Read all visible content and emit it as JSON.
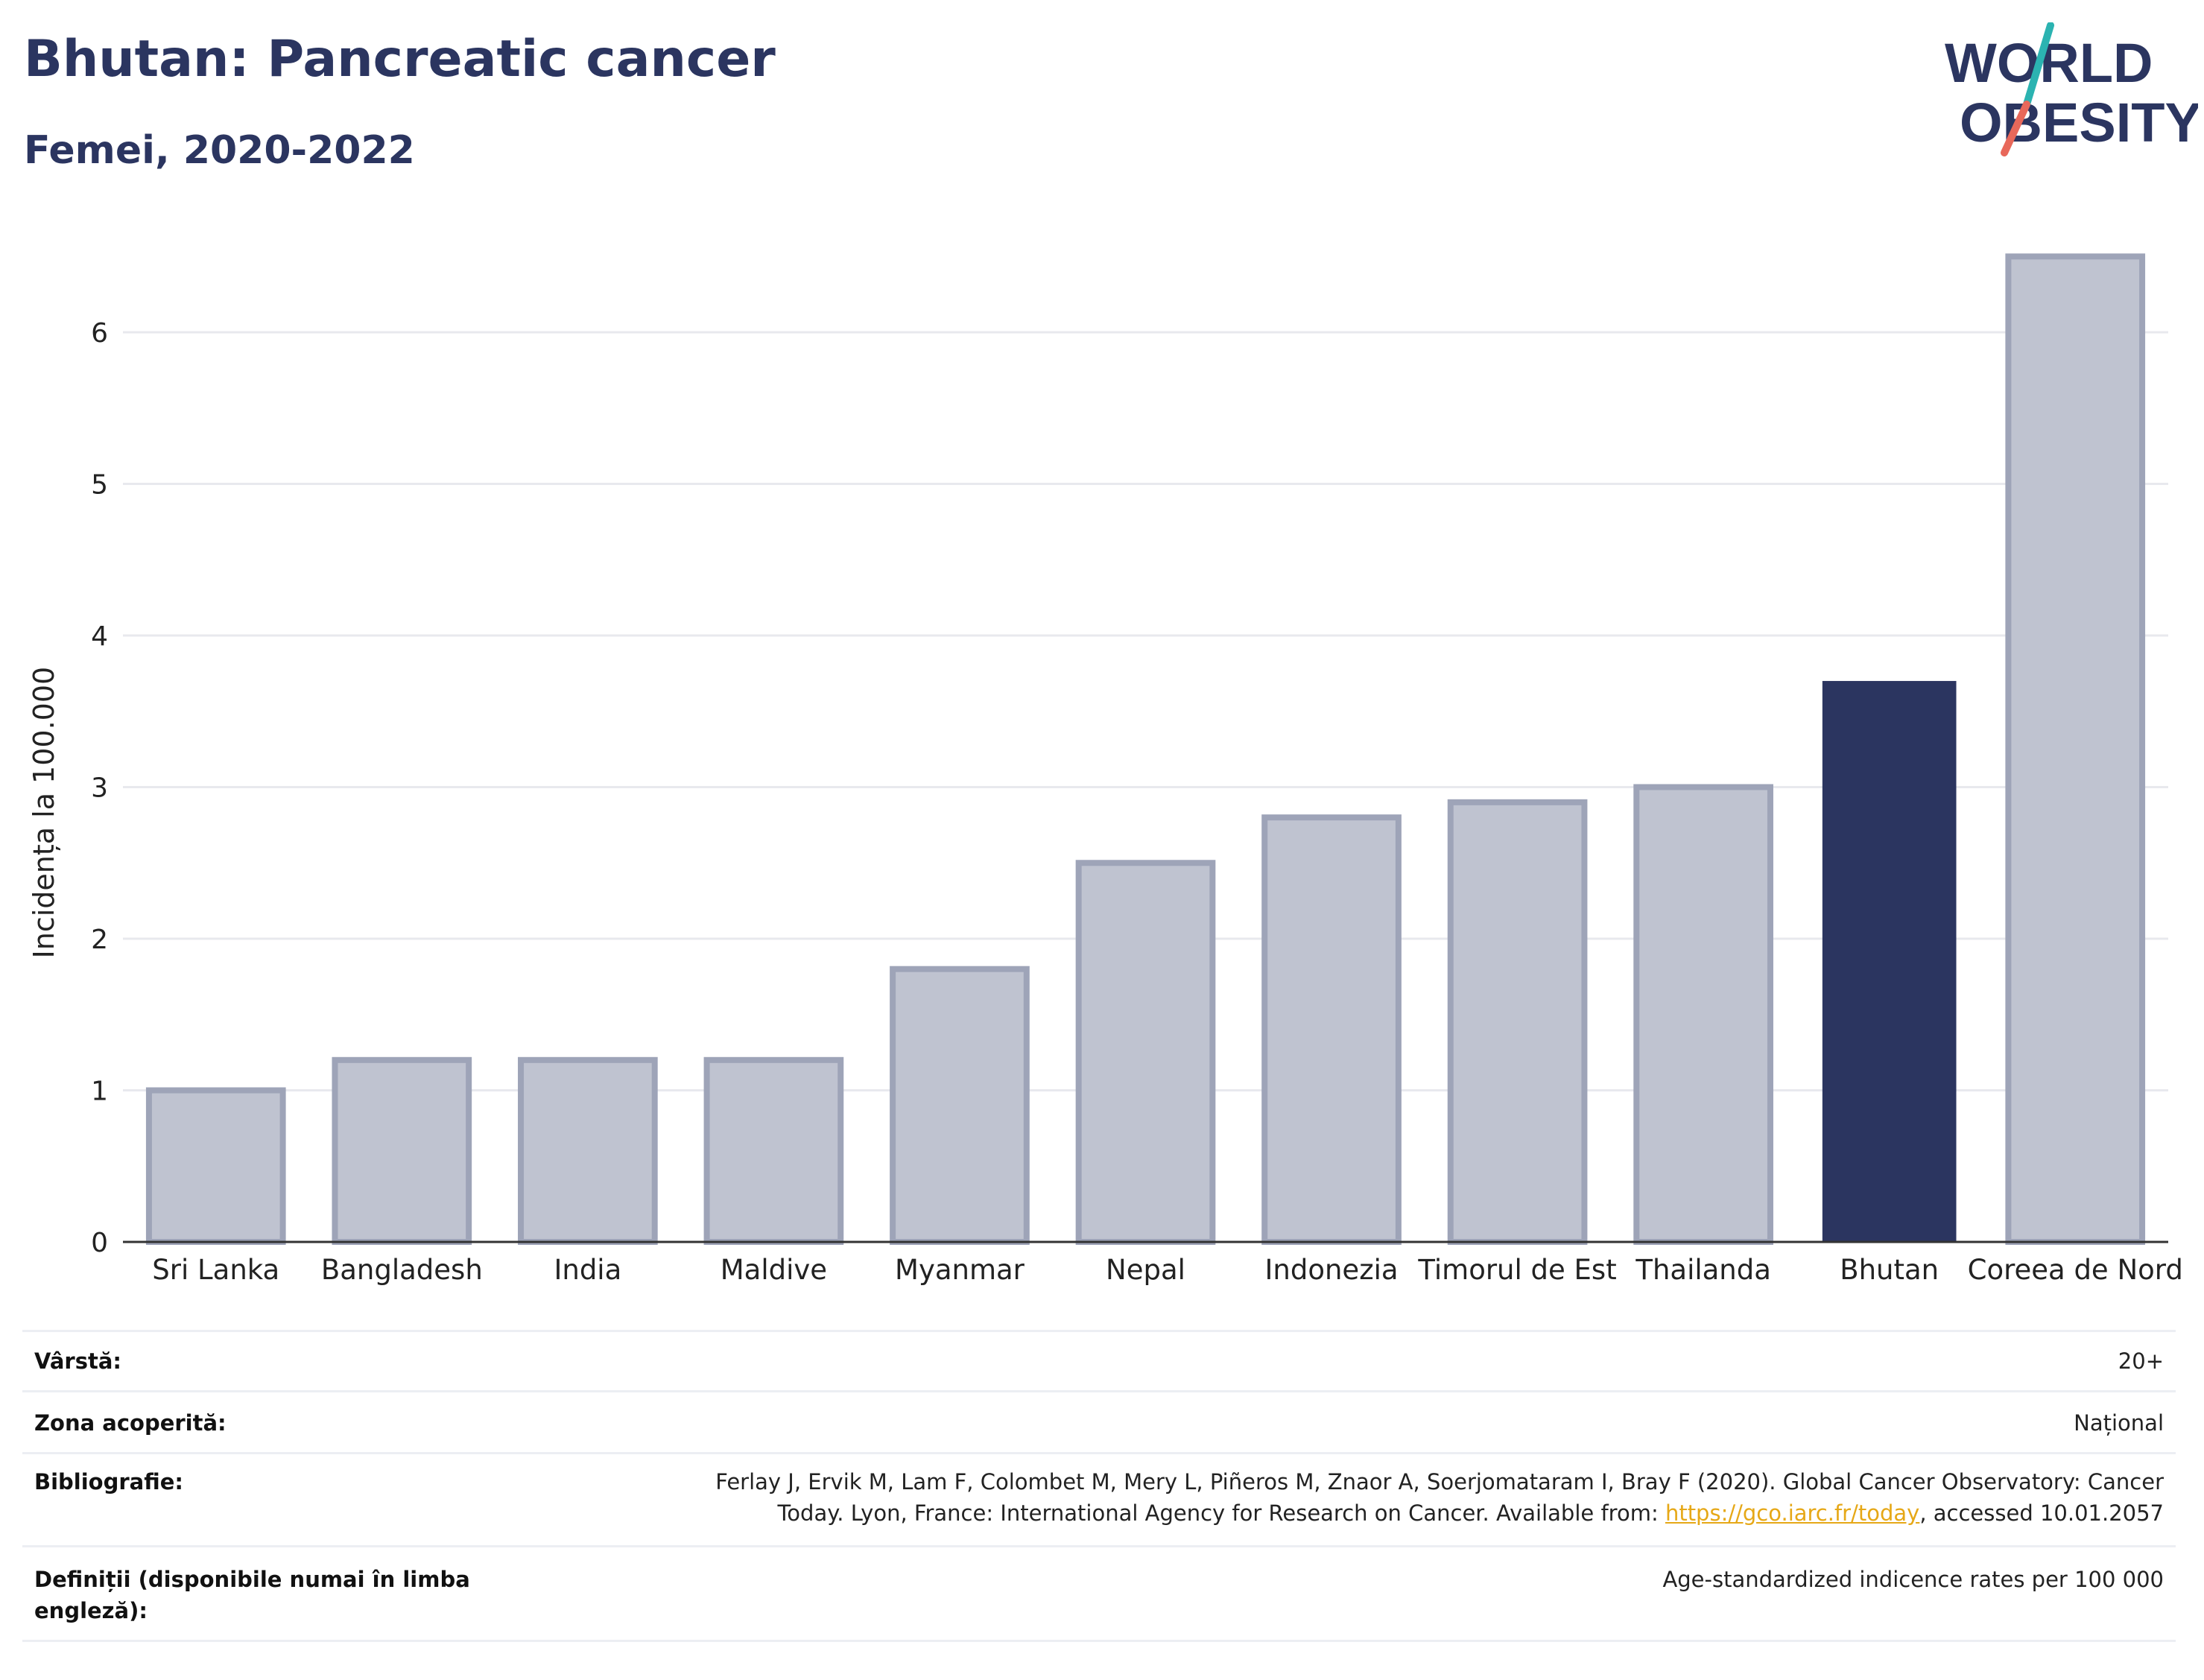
{
  "header": {
    "title": "Bhutan: Pancreatic cancer",
    "subtitle": "Femei, 2020-2022"
  },
  "logo": {
    "line1": "WORLD",
    "line2": "OBESITY"
  },
  "chart_data": {
    "type": "bar",
    "title": "Bhutan: Pancreatic cancer",
    "subtitle": "Femei, 2020-2022",
    "ylabel": "Incidența la 100.000",
    "xlabel": "",
    "ylim": [
      0,
      6.8
    ],
    "yticks": [
      0,
      1,
      2,
      3,
      4,
      5,
      6
    ],
    "grid": true,
    "categories": [
      "Sri Lanka",
      "Bangladesh",
      "India",
      "Maldive",
      "Myanmar",
      "Nepal",
      "Indonezia",
      "Timorul de Est",
      "Thailanda",
      "Bhutan",
      "Coreea de Nord"
    ],
    "values": [
      1.0,
      1.2,
      1.2,
      1.2,
      1.8,
      2.5,
      2.8,
      2.9,
      3.0,
      3.7,
      6.5
    ],
    "highlight": "Bhutan",
    "colors": {
      "highlight": "#2b3560",
      "default_fill": "#bfc3d0",
      "default_stroke": "#9ea4b8"
    }
  },
  "info": {
    "age_label": "Vârstă:",
    "age_value": "20+",
    "zone_label": "Zona acoperită:",
    "zone_value": "Național",
    "biblio_label": "Bibliografie:",
    "biblio_line1": "Ferlay J, Ervik M, Lam F, Colombet M, Mery L, Piñeros M, Znaor A, Soerjomataram I, Bray F (2020). Global Cancer Observatory: Cancer",
    "biblio_line2_pre": "Today. Lyon, France: International Agency for Research on Cancer. Available from: ",
    "biblio_link": "https://gco.iarc.fr/today",
    "biblio_line2_post": ", accessed 10.01.2057",
    "def_label": "Definiții (disponibile numai în limba engleză):",
    "def_value": "Age-standardized indicence rates per 100 000"
  }
}
